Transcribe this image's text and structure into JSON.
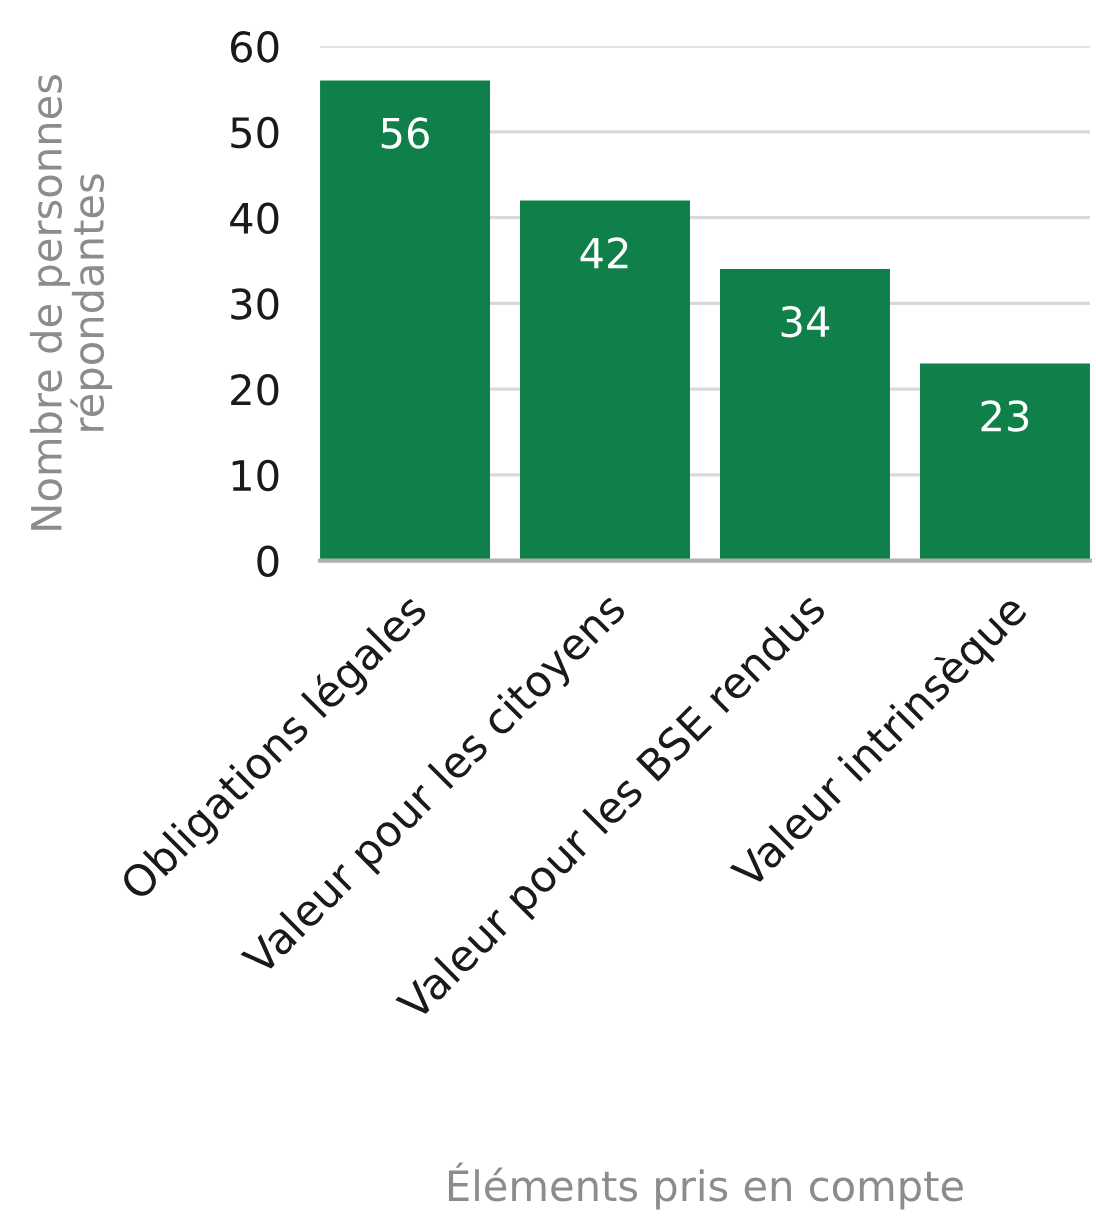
{
  "chart_data": {
    "type": "bar",
    "xlabel": "Éléments pris en compte",
    "ylabel": "Nombre de personnes\nrépondantes",
    "categories": [
      "Obligations légales",
      "Valeur pour les citoyens",
      "Valeur pour les BSE rendus",
      "Valeur intrinsèque"
    ],
    "values": [
      56,
      42,
      34,
      23
    ],
    "color": "#10804a",
    "ylim": [
      0,
      60
    ],
    "yticks": [
      0,
      10,
      20,
      30,
      40,
      50,
      60
    ],
    "grid": "y",
    "data_labels": true
  }
}
